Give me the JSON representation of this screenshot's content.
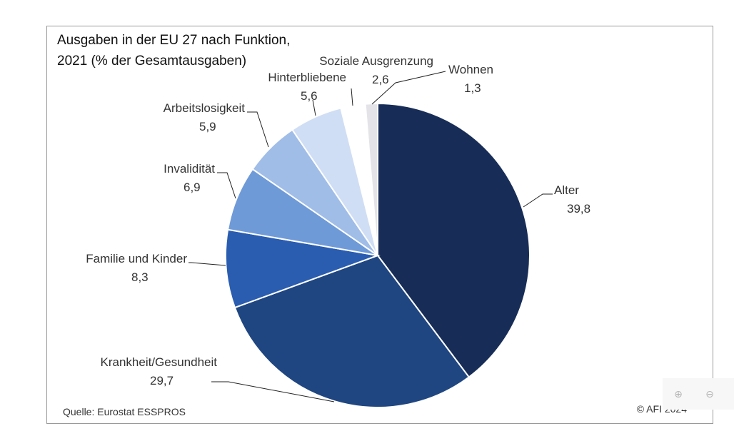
{
  "title_lines": [
    "Ausgaben in der EU 27 nach Funktion,",
    "2021 (% der Gesamtausgaben)"
  ],
  "source": "Quelle: Eurostat ESSPROS",
  "copyright": "© AFI 2024",
  "zoom_in_icon": "zoom-in-icon",
  "zoom_out_icon": "zoom-out-icon",
  "chart_data": {
    "type": "pie",
    "title": "Ausgaben in der EU 27 nach Funktion, 2021 (% der Gesamtausgaben)",
    "start": "12 o'clock, clockwise",
    "slices": [
      {
        "label": "Alter",
        "value_text": "39,8",
        "value": 39.8,
        "color": "#172d57"
      },
      {
        "label": "Krankheit/Gesundheit",
        "value_text": "29,7",
        "value": 29.7,
        "color": "#1f4681"
      },
      {
        "label": "Familie und Kinder",
        "value_text": "8,3",
        "value": 8.3,
        "color": "#2a5db0"
      },
      {
        "label": "Invalidität",
        "value_text": "6,9",
        "value": 6.9,
        "color": "#6f9ad8"
      },
      {
        "label": "Arbeitslosigkeit",
        "value_text": "5,9",
        "value": 5.9,
        "color": "#a0bde8"
      },
      {
        "label": "Hinterbliebene",
        "value_text": "5,6",
        "value": 5.6,
        "color": "#cfdef4"
      },
      {
        "label": "Soziale Ausgrenzung",
        "value_text": "2,6",
        "value": 2.6,
        "color": "#ffffff"
      },
      {
        "label": "Wohnen",
        "value_text": "1,3",
        "value": 1.3,
        "color": "#e4e4e8"
      }
    ]
  }
}
